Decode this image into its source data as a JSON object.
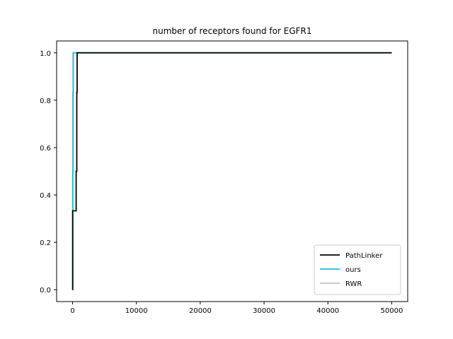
{
  "chart_data": {
    "type": "line",
    "title": "number of receptors found for EGFR1",
    "xlabel": "",
    "ylabel": "",
    "xlim": [
      -2500,
      52500
    ],
    "ylim": [
      -0.05,
      1.05
    ],
    "xticks": [
      0,
      10000,
      20000,
      30000,
      40000,
      50000
    ],
    "xtick_labels": [
      "0",
      "10000",
      "20000",
      "30000",
      "40000",
      "50000"
    ],
    "yticks": [
      0.0,
      0.2,
      0.4,
      0.6,
      0.8,
      1.0
    ],
    "ytick_labels": [
      "0.0",
      "0.2",
      "0.4",
      "0.6",
      "0.8",
      "1.0"
    ],
    "grid": false,
    "legend_position": "bottom-right",
    "series": [
      {
        "name": "PathLinker",
        "color": "#000000",
        "steps": [
          [
            0,
            0.0
          ],
          [
            20,
            0.333
          ],
          [
            550,
            0.333
          ],
          [
            560,
            0.5
          ],
          [
            650,
            0.5
          ],
          [
            660,
            0.833
          ],
          [
            700,
            0.833
          ],
          [
            710,
            1.0
          ],
          [
            50000,
            1.0
          ]
        ]
      },
      {
        "name": "ours",
        "color": "#17becf",
        "steps": [
          [
            0,
            0.0
          ],
          [
            10,
            0.333
          ],
          [
            30,
            0.5
          ],
          [
            60,
            0.833
          ],
          [
            90,
            1.0
          ],
          [
            50000,
            1.0
          ]
        ]
      },
      {
        "name": "RWR",
        "color": "#c0c0c0",
        "steps": [
          [
            0,
            0.0
          ],
          [
            15,
            0.333
          ],
          [
            40,
            0.5
          ],
          [
            80,
            0.833
          ],
          [
            120,
            1.0
          ],
          [
            50000,
            1.0
          ]
        ]
      }
    ]
  }
}
